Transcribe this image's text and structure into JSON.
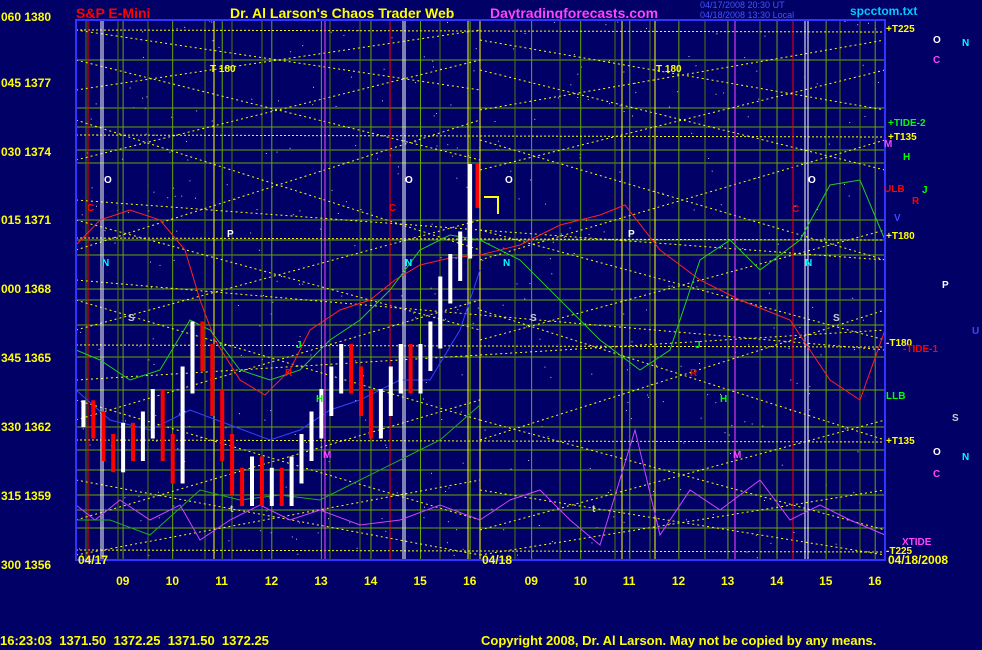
{
  "header": {
    "instrument": "S&P E-Mini",
    "title": "Dr. Al Larson's Chaos Trader Web",
    "site": "Daytradingforecasts.com",
    "timestamp1": "04/17/2008 20:30 UT",
    "timestamp2": "04/18/2008 13:30 Local",
    "filename": "spcctom.txt"
  },
  "footer": {
    "quote": "16:23:03  1371.50  1372.25  1371.50  1372.25",
    "copyright": "Copyright 2008, Dr. Al Larson. May not be copied by any means."
  },
  "colors": {
    "background": "#000066",
    "plot_border": "#3333ff",
    "grid_green": "#66aa00",
    "grid_yellow": "#ffff00",
    "price_up": "#ffffff",
    "price_down": "#ff0000",
    "white_vline": "#ffffff",
    "red_vline": "#ff0000",
    "magenta": "#cc44ff"
  },
  "chart_data": {
    "type": "line",
    "y_axis_labels": [
      {
        "code": "060",
        "price": "1380"
      },
      {
        "code": "045",
        "price": "1377"
      },
      {
        "code": "030",
        "price": "1374"
      },
      {
        "code": "015",
        "price": "1371"
      },
      {
        "code": "000",
        "price": "1368"
      },
      {
        "code": "345",
        "price": "1365"
      },
      {
        "code": "330",
        "price": "1362"
      },
      {
        "code": "315",
        "price": "1359"
      },
      {
        "code": "300",
        "price": "1356"
      }
    ],
    "ylim": [
      1356,
      1380
    ],
    "x_ticks": [
      "09",
      "10",
      "11",
      "12",
      "13",
      "14",
      "15",
      "16",
      "09",
      "10",
      "11",
      "12",
      "13",
      "14",
      "15",
      "16"
    ],
    "date_start": "04/17",
    "date_mid": "04/18",
    "date_end": "04/18/2008",
    "price_series": {
      "name": "",
      "x_hours": [
        8.2,
        8.4,
        8.6,
        8.8,
        9.0,
        9.2,
        9.4,
        9.6,
        9.8,
        10.0,
        10.2,
        10.4,
        10.6,
        10.8,
        11.0,
        11.2,
        11.4,
        11.6,
        11.8,
        12.0,
        12.2,
        12.4,
        12.6,
        12.8,
        13.0,
        13.2,
        13.4,
        13.6,
        13.8,
        14.0,
        14.2,
        14.4,
        14.6,
        14.8,
        15.0,
        15.2,
        15.4,
        15.6,
        15.8,
        16.0,
        16.15
      ],
      "close": [
        1362.5,
        1362,
        1361,
        1360.5,
        1361.5,
        1361,
        1362,
        1363,
        1361,
        1360,
        1364,
        1366,
        1365,
        1363,
        1361,
        1359.5,
        1359,
        1360,
        1359,
        1359.5,
        1359,
        1360,
        1361,
        1362,
        1363,
        1364,
        1365,
        1364,
        1363,
        1362,
        1363,
        1364,
        1365,
        1364,
        1365,
        1366,
        1368,
        1369,
        1370,
        1373,
        1372.25
      ]
    },
    "right_labels": [
      {
        "text": "+T225",
        "color": "#ffff00"
      },
      {
        "text": "+TIDE-2",
        "color": "#00ff00"
      },
      {
        "text": "+T135",
        "color": "#ffff00"
      },
      {
        "text": "M",
        "color": "#ff44ff"
      },
      {
        "text": "H",
        "color": "#00ff00"
      },
      {
        "text": "ULB",
        "color": "#ff0000"
      },
      {
        "text": "J",
        "color": "#00ff00"
      },
      {
        "text": "R",
        "color": "#ff0000"
      },
      {
        "text": "V",
        "color": "#4444ff"
      },
      {
        "text": "+T180",
        "color": "#ffff00"
      },
      {
        "text": "-T180",
        "color": "#ffff00"
      },
      {
        "text": "-TIDE-1",
        "color": "#ff0000"
      },
      {
        "text": "LLB",
        "color": "#00ff00"
      },
      {
        "text": "+T135",
        "color": "#ffff00"
      },
      {
        "text": "XTIDE",
        "color": "#ff44ff"
      },
      {
        "text": "-T225",
        "color": "#ffff00"
      }
    ],
    "far_right_labels": [
      {
        "text": "O",
        "color": "#ffffff"
      },
      {
        "text": "N",
        "color": "#00ffff"
      },
      {
        "text": "C",
        "color": "#ff44ff"
      },
      {
        "text": "P",
        "color": "#ffffff"
      },
      {
        "text": "U",
        "color": "#4444ff"
      },
      {
        "text": "S",
        "color": "#cccccc"
      },
      {
        "text": "O",
        "color": "#ffffff"
      },
      {
        "text": "N",
        "color": "#00ffff"
      },
      {
        "text": "C",
        "color": "#ff44ff"
      }
    ],
    "in_chart_labels": [
      {
        "text": "T 180",
        "color": "#ffff00"
      },
      {
        "text": "T 180",
        "color": "#ffff00"
      },
      {
        "text": "O",
        "color": "#ffffff"
      },
      {
        "text": "O",
        "color": "#ffffff"
      },
      {
        "text": "O",
        "color": "#ffffff"
      },
      {
        "text": "O",
        "color": "#ffffff"
      },
      {
        "text": "C",
        "color": "#ff0000"
      },
      {
        "text": "C",
        "color": "#ff0000"
      },
      {
        "text": "C",
        "color": "#ff0000"
      },
      {
        "text": "P",
        "color": "#ffffff"
      },
      {
        "text": "P",
        "color": "#ffffff"
      },
      {
        "text": "N",
        "color": "#00ffff"
      },
      {
        "text": "N",
        "color": "#00ffff"
      },
      {
        "text": "N",
        "color": "#00ffff"
      },
      {
        "text": "N",
        "color": "#00ffff"
      },
      {
        "text": "S",
        "color": "#cccccc"
      },
      {
        "text": "S",
        "color": "#cccccc"
      },
      {
        "text": "S",
        "color": "#cccccc"
      },
      {
        "text": "J",
        "color": "#00ff00"
      },
      {
        "text": "J",
        "color": "#00ff00"
      },
      {
        "text": "R",
        "color": "#ff0000"
      },
      {
        "text": "R",
        "color": "#ff0000"
      },
      {
        "text": "H",
        "color": "#00ff00"
      },
      {
        "text": "H",
        "color": "#00ff00"
      },
      {
        "text": "M",
        "color": "#ff44ff"
      },
      {
        "text": "M",
        "color": "#ff44ff"
      },
      {
        "text": "t",
        "color": "#cccccc"
      },
      {
        "text": "t",
        "color": "#cccccc"
      }
    ]
  }
}
